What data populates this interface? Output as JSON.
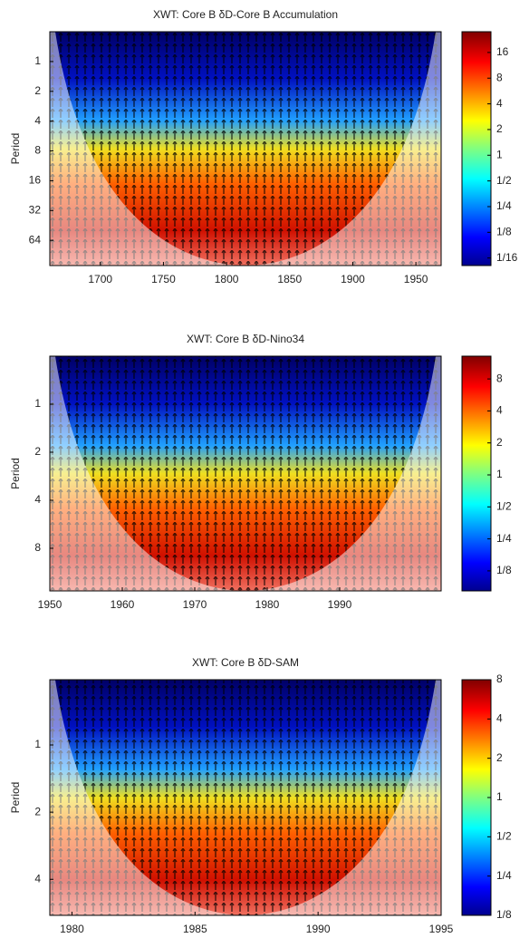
{
  "chart_data": [
    {
      "type": "heatmap",
      "title": "XWT: Core B δD-Core B Accumulation",
      "ylabel": "Period",
      "xlim": [
        1660,
        1970
      ],
      "xticks": [
        1700,
        1750,
        1800,
        1850,
        1900,
        1950
      ],
      "ylim": [
        0.5,
        115
      ],
      "yticks": [
        1,
        2,
        4,
        8,
        16,
        32,
        64
      ],
      "y_scale": "log",
      "y_inverted": true,
      "colorbar": {
        "lim": [
          0.051,
          28
        ],
        "scale": "log",
        "ticks": [
          16,
          8,
          4,
          2,
          1,
          {
            "value": 0.5,
            "label": "1/2"
          },
          {
            "value": 0.25,
            "label": "1/4"
          },
          {
            "value": 0.125,
            "label": "1/8"
          },
          {
            "value": 0.0625,
            "label": "1/16"
          }
        ]
      }
    },
    {
      "type": "heatmap",
      "title": "XWT: Core B δD-Nino34",
      "ylabel": "Period",
      "xlim": [
        1950,
        2004
      ],
      "xticks": [
        1950,
        1960,
        1970,
        1980,
        1990
      ],
      "ylim": [
        0.5,
        14.8
      ],
      "yticks": [
        1,
        2,
        4,
        8
      ],
      "y_scale": "log",
      "y_inverted": true,
      "colorbar": {
        "lim": [
          0.081,
          13.1
        ],
        "scale": "log",
        "ticks": [
          8,
          4,
          2,
          1,
          {
            "value": 0.5,
            "label": "1/2"
          },
          {
            "value": 0.25,
            "label": "1/4"
          },
          {
            "value": 0.125,
            "label": "1/8"
          }
        ]
      }
    },
    {
      "type": "heatmap",
      "title": "XWT: Core B δD-SAM",
      "ylabel": "Period",
      "xlim": [
        1979.1,
        1995
      ],
      "xticks": [
        1980,
        1985,
        1990,
        1995
      ],
      "ylim": [
        0.51,
        5.8
      ],
      "yticks": [
        1,
        2,
        4
      ],
      "y_scale": "log",
      "y_inverted": true,
      "colorbar": {
        "lim": [
          0.125,
          8
        ],
        "scale": "log",
        "ticks": [
          8,
          4,
          2,
          1,
          {
            "value": 0.5,
            "label": "1/2"
          },
          {
            "value": 0.25,
            "label": "1/4"
          },
          {
            "value": 0.125,
            "label": "1/8"
          }
        ]
      }
    }
  ]
}
